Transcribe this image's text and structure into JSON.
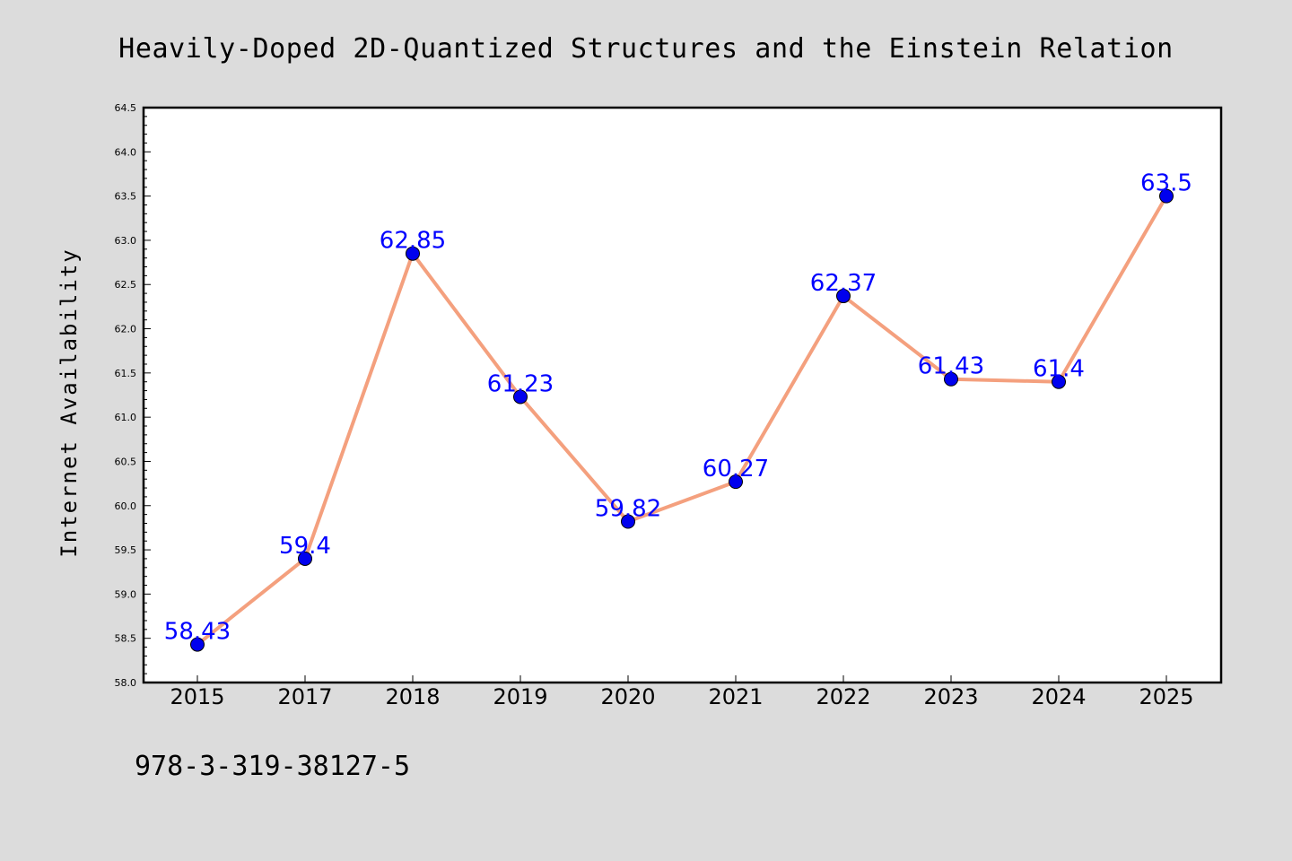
{
  "chart_data": {
    "type": "line",
    "title": "Heavily-Doped 2D-Quantized Structures and the Einstein Relation",
    "ylabel": "Internet Availability",
    "xlabel": "",
    "categories": [
      "2015",
      "2017",
      "2018",
      "2019",
      "2020",
      "2021",
      "2022",
      "2023",
      "2024",
      "2025"
    ],
    "series": [
      {
        "values": [
          58.43,
          59.4,
          62.85,
          61.23,
          59.82,
          60.27,
          62.37,
          61.43,
          61.4,
          63.5
        ],
        "data_labels": [
          "58.43",
          "59.4",
          "62.85",
          "61.23",
          "59.82",
          "60.27",
          "62.37",
          "61.43",
          "61.4",
          "63.5"
        ],
        "line_color": "#f4a07e",
        "marker_color": "#0000ee"
      }
    ],
    "ylim": [
      58.0,
      64.5
    ],
    "yticks": [
      "58.0",
      "58.5",
      "59.0",
      "59.5",
      "60.0",
      "60.5",
      "61.0",
      "61.5",
      "62.0",
      "62.5",
      "63.0",
      "63.5",
      "64.0",
      "64.5"
    ],
    "label_color": "#0000ff",
    "grid": false,
    "legend": "none"
  },
  "footer_text": "978-3-319-38127-5",
  "colors": {
    "background": "#dcdcdc",
    "plot_background": "#ffffff",
    "axis": "#000000"
  }
}
